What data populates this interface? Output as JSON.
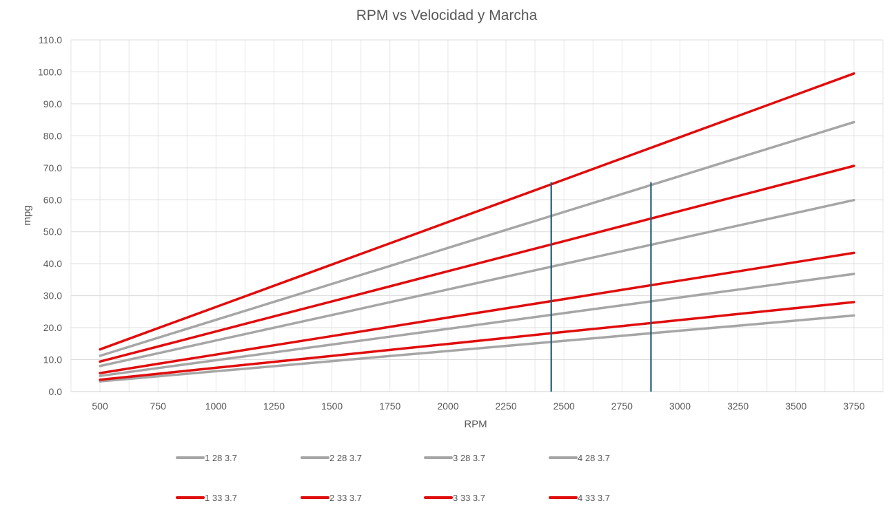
{
  "chart_data": {
    "type": "line",
    "title": "RPM vs Velocidad y Marcha",
    "xlabel": "RPM",
    "ylabel": "mpg",
    "x": [
      500,
      750,
      1000,
      1250,
      1500,
      1750,
      2000,
      2250,
      2500,
      2750,
      3000,
      3250,
      3500,
      3750
    ],
    "xlim": [
      500,
      3750
    ],
    "ylim": [
      0,
      110
    ],
    "y_tick_labels": [
      "0.0",
      "10.0",
      "20.0",
      "30.0",
      "40.0",
      "50.0",
      "60.0",
      "70.0",
      "80.0",
      "90.0",
      "100.0",
      "110.0"
    ],
    "grid": true,
    "legend_position": "bottom",
    "series": [
      {
        "name": "1 28 3.7",
        "color": "#a6a6a6",
        "start": 3.2,
        "end": 23.8
      },
      {
        "name": "2 28 3.7",
        "color": "#a6a6a6",
        "start": 4.9,
        "end": 36.8
      },
      {
        "name": "3 28 3.7",
        "color": "#a6a6a6",
        "start": 8.0,
        "end": 59.9
      },
      {
        "name": "4 28 3.7",
        "color": "#a6a6a6",
        "start": 11.2,
        "end": 84.3
      },
      {
        "name": "1 33 3.7",
        "color": "#e00d0d",
        "start": 3.7,
        "end": 28.0
      },
      {
        "name": "2 33 3.7",
        "color": "#e00d0d",
        "start": 5.8,
        "end": 43.4
      },
      {
        "name": "3 33 3.7",
        "color": "#e00d0d",
        "start": 9.4,
        "end": 70.6
      },
      {
        "name": "4 33 3.7",
        "color": "#e00d0d",
        "start": 13.2,
        "end": 99.5
      }
    ],
    "annotations": [
      {
        "type": "vertical-line",
        "x": 2445,
        "y_top": 65.5,
        "color": "#1f5b7a"
      },
      {
        "type": "vertical-line",
        "x": 2875,
        "y_top": 65.5,
        "color": "#1f5b7a"
      }
    ]
  }
}
